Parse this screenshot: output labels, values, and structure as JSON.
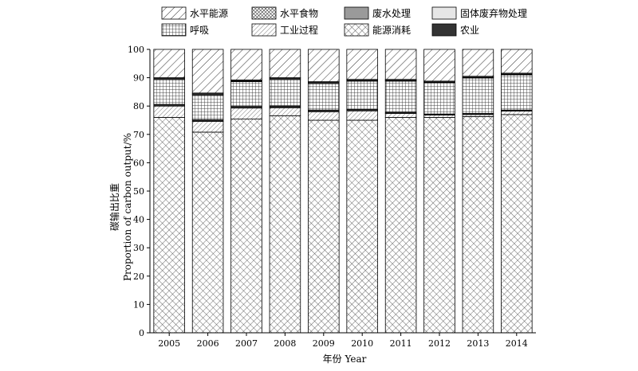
{
  "chart_data": {
    "type": "bar",
    "stacked": true,
    "categories": [
      "2005",
      "2006",
      "2007",
      "2008",
      "2009",
      "2010",
      "2011",
      "2012",
      "2013",
      "2014"
    ],
    "xlabel": "年份 Year",
    "ylabel_cn": "碳输出比重",
    "ylabel_en": "Proportion of carbon output/%",
    "ylim": [
      0,
      100
    ],
    "yticks": [
      0,
      10,
      20,
      30,
      40,
      50,
      60,
      70,
      80,
      90,
      100
    ],
    "series": [
      {
        "name": "能源消耗",
        "pattern": "diag-cross-fine",
        "values": [
          76.0,
          70.8,
          75.4,
          76.6,
          75.0,
          75.0,
          76.0,
          76.0,
          76.3,
          77.0
        ]
      },
      {
        "name": "工业过程",
        "pattern": "diag-single",
        "values": [
          4.0,
          3.8,
          3.9,
          2.8,
          3.0,
          3.3,
          1.4,
          0.8,
          0.7,
          1.2
        ]
      },
      {
        "name": "农业",
        "pattern": "solid-dark",
        "values": [
          0.6,
          0.6,
          0.6,
          0.6,
          0.6,
          0.5,
          0.4,
          0.4,
          0.4,
          0.4
        ]
      },
      {
        "name": "呼吸",
        "pattern": "grid",
        "values": [
          8.7,
          8.7,
          8.7,
          9.3,
          9.3,
          10.0,
          11.0,
          11.0,
          12.5,
          12.4
        ]
      },
      {
        "name": "固体废弃物处理",
        "pattern": "solid-light",
        "values": [
          0.3,
          0.3,
          0.2,
          0.3,
          0.3,
          0.2,
          0.2,
          0.2,
          0.2,
          0.2
        ]
      },
      {
        "name": "废水处理",
        "pattern": "solid-gray",
        "values": [
          0.3,
          0.3,
          0.3,
          0.3,
          0.3,
          0.3,
          0.3,
          0.3,
          0.3,
          0.3
        ]
      },
      {
        "name": "水平食物",
        "pattern": "dense-crosshatch",
        "values": [
          0.1,
          0.1,
          0.1,
          0.1,
          0.1,
          0.1,
          0.1,
          0.1,
          0.1,
          0.1
        ]
      },
      {
        "name": "水平能源",
        "pattern": "diag-wide",
        "values": [
          10.0,
          15.4,
          10.8,
          10.0,
          11.4,
          10.6,
          10.6,
          11.2,
          9.5,
          8.4
        ]
      }
    ],
    "legend": {
      "placement": "top",
      "rows": [
        [
          "水平能源",
          "水平食物",
          "废水处理",
          "固体废弃物处理"
        ],
        [
          "呼吸",
          "工业过程",
          "能源消耗",
          "农业"
        ]
      ]
    },
    "grid": false
  }
}
